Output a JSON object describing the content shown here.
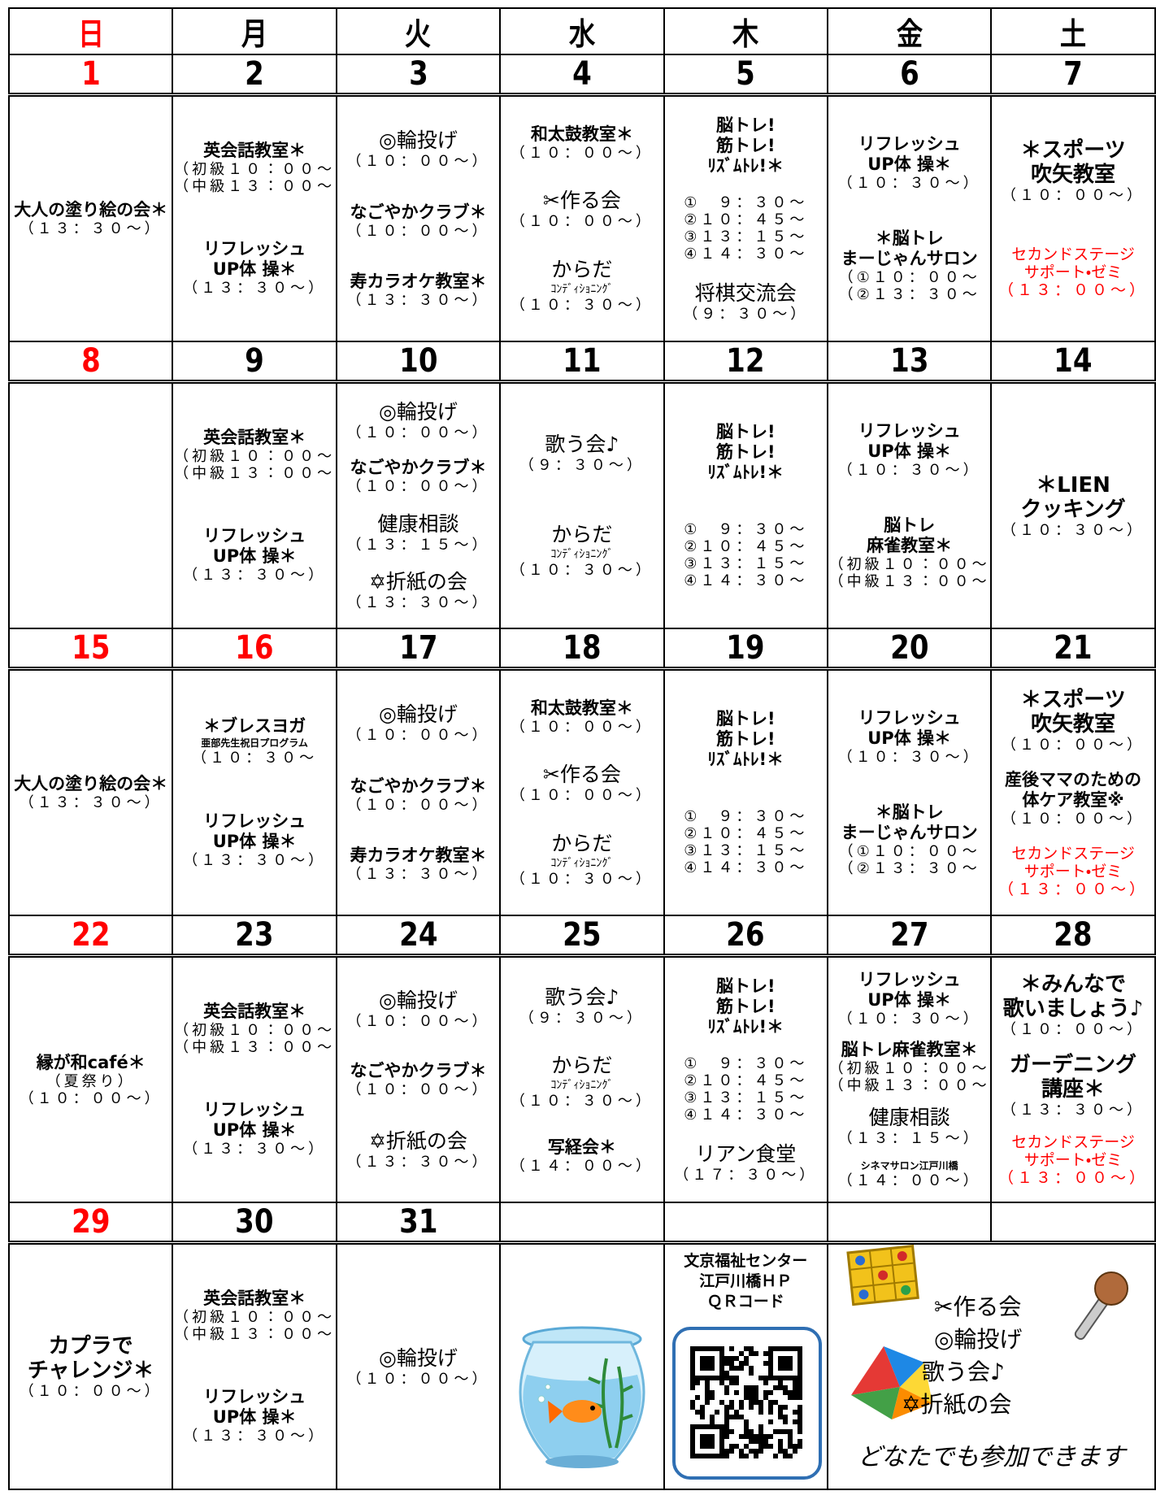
{
  "weekdays": [
    "日",
    "月",
    "火",
    "水",
    "木",
    "金",
    "土"
  ],
  "weeks": [
    {
      "dates": [
        1,
        2,
        3,
        4,
        5,
        6,
        7
      ],
      "days": [
        [
          [
            "大人の塗り絵の会＊",
            "（１３：３０～）"
          ]
        ],
        [
          [
            "英会話教室＊",
            "（初級１０：００～",
            "（中級１３：００～"
          ],
          [
            "リフレッシュ",
            "UP体 操＊",
            "（１３：３０～）"
          ]
        ],
        [
          [
            "◎輪投げ",
            "（１０：００～）"
          ],
          [
            "なごやかクラブ＊",
            "（１０：００～）"
          ],
          [
            "寿カラオケ教室＊",
            "（１３：３０～）"
          ]
        ],
        [
          [
            "和太鼓教室＊",
            "（１０：００～）"
          ],
          [
            "✂作る会",
            "（１０：００～）"
          ],
          [
            "からだ",
            "ｺﾝﾃﾞｨｼｮﾆﾝｸﾞ",
            "（１０：３０～）"
          ]
        ],
        [
          [
            "脳トレ!",
            "筋トレ!",
            "ﾘｽﾞﾑﾄﾚ!＊"
          ],
          [
            "①　９：３０～",
            "②１０：４５～",
            "③１３：１５～",
            "④１４：３０～"
          ],
          [
            "将棋交流会",
            "（９：３０～）"
          ]
        ],
        [
          [
            "リフレッシュ",
            "UP体 操＊",
            "（１０：３０～）"
          ],
          [
            "＊脳トレ",
            "まーじゃんサロン",
            "（①１０：００～",
            "（②１３：３０～"
          ]
        ],
        [
          [
            "＊スポーツ",
            "吹矢教室",
            "（１０：００～）"
          ],
          [
            "セカンドステージ",
            "サポート・ゼミ",
            "（１３：００～）"
          ]
        ]
      ]
    },
    {
      "dates": [
        8,
        9,
        10,
        11,
        12,
        13,
        14
      ],
      "days": [
        [],
        [
          [
            "英会話教室＊",
            "（初級１０：００～",
            "（中級１３：００～"
          ],
          [
            "リフレッシュ",
            "UP体 操＊",
            "（１３：３０～）"
          ]
        ],
        [
          [
            "◎輪投げ",
            "（１０：００～）"
          ],
          [
            "なごやかクラブ＊",
            "（１０：００～）"
          ],
          [
            "健康相談",
            "（１３：１５～）"
          ],
          [
            "✡折紙の会",
            "（１３：３０～）"
          ]
        ],
        [
          [
            "歌う会♪",
            "（９：３０～）"
          ],
          [
            "からだ",
            "ｺﾝﾃﾞｨｼｮﾆﾝｸﾞ",
            "（１０：３０～）"
          ]
        ],
        [
          [
            "脳トレ!",
            "筋トレ!",
            "ﾘｽﾞﾑﾄﾚ!＊"
          ],
          [
            "①　９：３０～",
            "②１０：４５～",
            "③１３：１５～",
            "④１４：３０～"
          ]
        ],
        [
          [
            "リフレッシュ",
            "UP体 操＊",
            "（１０：３０～）"
          ],
          [
            "脳トレ",
            "麻雀教室＊",
            "（初級１０：００～",
            "（中級１３：００～"
          ]
        ],
        [
          [
            "＊LIEN",
            "クッキング",
            "（１０：３０～）"
          ]
        ]
      ]
    },
    {
      "dates": [
        15,
        16,
        17,
        18,
        19,
        20,
        21
      ],
      "days": [
        [
          [
            "大人の塗り絵の会＊",
            "（１３：３０～）"
          ]
        ],
        [
          [
            "＊ブレスヨガ",
            "亜部先生祝日プログラム",
            "（１０：３０～"
          ],
          [
            "リフレッシュ",
            "UP体 操＊",
            "（１３：３０～）"
          ]
        ],
        [
          [
            "◎輪投げ",
            "（１０：００～）"
          ],
          [
            "なごやかクラブ＊",
            "（１０：００～）"
          ],
          [
            "寿カラオケ教室＊",
            "（１３：３０～）"
          ]
        ],
        [
          [
            "和太鼓教室＊",
            "（１０：００～）"
          ],
          [
            "✂作る会",
            "（１０：００～）"
          ],
          [
            "からだ",
            "ｺﾝﾃﾞｨｼｮﾆﾝｸﾞ",
            "（１０：３０～）"
          ]
        ],
        [
          [
            "脳トレ!",
            "筋トレ!",
            "ﾘｽﾞﾑﾄﾚ!＊"
          ],
          [
            "①　９：３０～",
            "②１０：４５～",
            "③１３：１５～",
            "④１４：３０～"
          ]
        ],
        [
          [
            "リフレッシュ",
            "UP体 操＊",
            "（１０：３０～）"
          ],
          [
            "＊脳トレ",
            "まーじゃんサロン",
            "（①１０：００～",
            "（②１３：３０～"
          ]
        ],
        [
          [
            "＊スポーツ",
            "吹矢教室",
            "（１０：００～）"
          ],
          [
            "産後ママのための",
            "体ケア教室※",
            "（１０：００～）"
          ],
          [
            "セカンドステージ",
            "サポート・ゼミ",
            "（１３：００～）"
          ]
        ]
      ]
    },
    {
      "dates": [
        22,
        23,
        24,
        25,
        26,
        27,
        28
      ],
      "days": [
        [
          [
            "縁が和café＊",
            "（夏祭り）",
            "（１０：００～）"
          ]
        ],
        [
          [
            "英会話教室＊",
            "（初級１０：００～",
            "（中級１３：００～"
          ],
          [
            "リフレッシュ",
            "UP体 操＊",
            "（１３：３０～）"
          ]
        ],
        [
          [
            "◎輪投げ",
            "（１０：００～）"
          ],
          [
            "なごやかクラブ＊",
            "（１０：００～）"
          ],
          [
            "✡折紙の会",
            "（１３：３０～）"
          ]
        ],
        [
          [
            "歌う会♪",
            "（９：３０～）"
          ],
          [
            "からだ",
            "ｺﾝﾃﾞｨｼｮﾆﾝｸﾞ",
            "（１０：３０～）"
          ],
          [
            "写経会＊",
            "（１４：００～）"
          ]
        ],
        [
          [
            "脳トレ!",
            "筋トレ!",
            "ﾘｽﾞﾑﾄﾚ!＊"
          ],
          [
            "①　９：３０～",
            "②１０：４５～",
            "③１３：１５～",
            "④１４：３０～"
          ],
          [
            "リアン食堂",
            "（１７：３０～）"
          ]
        ],
        [
          [
            "リフレッシュ",
            "UP体 操＊",
            "（１０：３０～）"
          ],
          [
            "脳トレ麻雀教室＊",
            "（初級１０：００～",
            "（中級１３：００～"
          ],
          [
            "健康相談",
            "（１３：１５～）"
          ],
          [
            "シネマサロン江戸川橋",
            "（１４：００～）"
          ]
        ],
        [
          [
            "＊みんなで",
            "歌いましょう♪",
            "（１０：００～）"
          ],
          [
            "ガーデニング",
            "講座＊",
            "（１３：３０～）"
          ],
          [
            "セカンドステージ",
            "サポート・ゼミ",
            "（１３：００～）"
          ]
        ]
      ]
    },
    {
      "dates": [
        29,
        30,
        31
      ],
      "days": [
        [
          [
            "カプラで",
            "チャレンジ＊",
            "（１０：００～）"
          ]
        ],
        [
          [
            "英会話教室＊",
            "（初級１０：００～",
            "（中級１３：００～"
          ],
          [
            "リフレッシュ",
            "UP体 操＊",
            "（１３：３０～）"
          ]
        ],
        [
          [
            "◎輪投げ",
            "（１０：００～）"
          ]
        ]
      ]
    }
  ],
  "qr_caption": [
    "文京福祉センター",
    "江戸川橋ＨＰ",
    "ＱＲコード"
  ],
  "activities": [
    "✂作る会",
    "◎輪投げ",
    "歌う会♪",
    "✡折紙の会"
  ],
  "note": "どなたでも参加できます"
}
